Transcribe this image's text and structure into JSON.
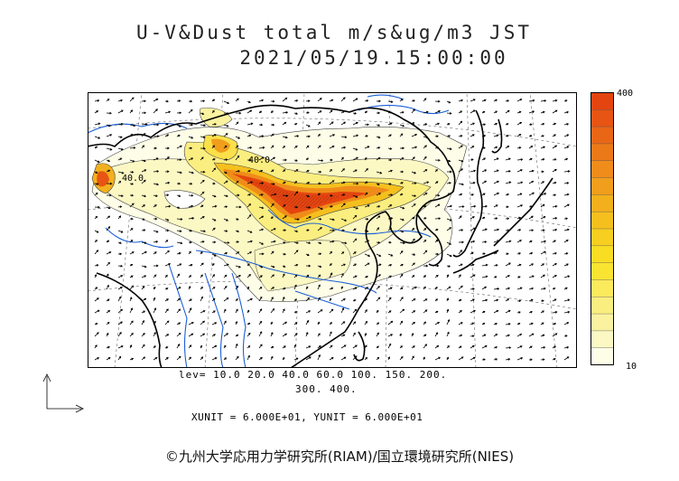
{
  "header": {
    "title": "U-V&Dust total m/s&ug/m3 JST",
    "datetime": "2021/05/19.15:00:00"
  },
  "colorbar": {
    "max_label": "400",
    "min_label": "10",
    "colors": [
      "#fdfde8",
      "#fcf8c4",
      "#fbf2a0",
      "#fbee80",
      "#fbea5c",
      "#f9e432",
      "#f9dd23",
      "#f7cf20",
      "#f5c01e",
      "#f3b01d",
      "#f19e1c",
      "#ef8c1a",
      "#ec7918",
      "#e96616",
      "#e75413",
      "#e44510"
    ]
  },
  "contour_levels": {
    "line1": "lev= 10.0 20.0 40.0 60.0 100. 150. 200.",
    "line2": "300. 400."
  },
  "vector_units": "XUNIT = 6.000E+01, YUNIT = 6.000E+01",
  "map_labels": {
    "west_contour": "40.0",
    "north_contour": "40.0"
  },
  "copyright": "©九州大学応用力学研究所(RIAM)/国立環境研究所(NIES)"
}
